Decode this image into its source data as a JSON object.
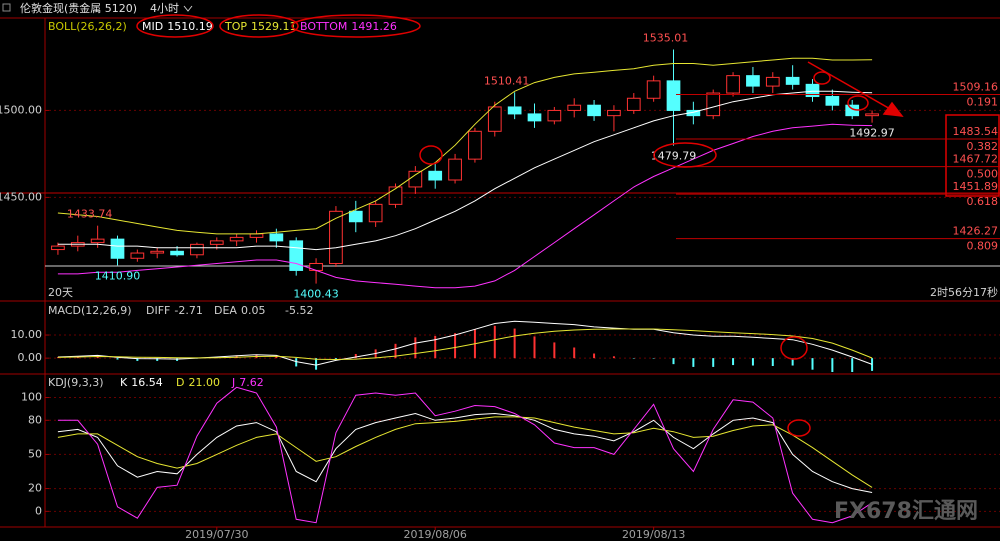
{
  "chart_data": [
    {
      "type": "candlestick",
      "title": "伦敦金现(贵金属 5120)",
      "period": "4小时",
      "open": [
        1420,
        1422,
        1424,
        1426,
        1415,
        1418,
        1419,
        1417,
        1423,
        1425,
        1427,
        1429,
        1425,
        1408,
        1412,
        1442,
        1436,
        1446,
        1456,
        1465,
        1460,
        1472,
        1488,
        1502,
        1498,
        1494,
        1500,
        1503,
        1497,
        1500,
        1507,
        1517,
        1500,
        1497,
        1510,
        1520,
        1514,
        1519,
        1515,
        1508,
        1503,
        1497
      ],
      "high": [
        1424,
        1428,
        1433.74,
        1428,
        1420,
        1421,
        1422,
        1424,
        1427,
        1429,
        1431,
        1432,
        1427,
        1415,
        1445,
        1448,
        1448,
        1458,
        1468,
        1470,
        1475,
        1490,
        1505,
        1510.41,
        1504,
        1502,
        1507,
        1506,
        1503,
        1510,
        1520,
        1535.01,
        1505,
        1512,
        1522,
        1525,
        1522,
        1526,
        1518,
        1512,
        1506,
        1500
      ],
      "low": [
        1417,
        1419,
        1421,
        1410.9,
        1413,
        1415,
        1416,
        1415,
        1420,
        1422,
        1424,
        1421,
        1405,
        1400.43,
        1410,
        1430,
        1433,
        1444,
        1452,
        1455,
        1458,
        1470,
        1485,
        1495,
        1490,
        1492,
        1496,
        1494,
        1488,
        1498,
        1505,
        1479.79,
        1492,
        1495,
        1508,
        1510,
        1510,
        1512,
        1505,
        1500,
        1495,
        1492.97
      ],
      "close": [
        1422,
        1424,
        1426,
        1415,
        1418,
        1419,
        1417,
        1423,
        1425,
        1427,
        1429,
        1425,
        1408,
        1412,
        1442,
        1436,
        1446,
        1456,
        1465,
        1460,
        1472,
        1488,
        1502,
        1498,
        1494,
        1500,
        1503,
        1497,
        1500,
        1507,
        1517,
        1500,
        1497,
        1510,
        1520,
        1514,
        1519,
        1515,
        1508,
        1503,
        1497,
        1498
      ],
      "up_color": "#ff3232",
      "down_color": "#54ffff",
      "ylim": [
        1391,
        1552
      ],
      "yticks": [
        {
          "value": 1450,
          "label": "1450.00"
        },
        {
          "value": 1500,
          "label": "1500.00"
        }
      ],
      "grid": true,
      "overlay": {
        "name": "BOLL(26,26,2)",
        "color": "#c8c800",
        "series": [
          {
            "name": "MID",
            "color": "#ffffff",
            "readout": 1510.19,
            "values": [
              1423,
              1423,
              1423,
              1422,
              1422,
              1421,
              1421,
              1421,
              1421,
              1421,
              1422,
              1422,
              1421,
              1420,
              1421,
              1423,
              1425,
              1428,
              1432,
              1437,
              1442,
              1448,
              1455,
              1461,
              1467,
              1472,
              1477,
              1482,
              1486,
              1490,
              1494,
              1497,
              1499,
              1502,
              1505,
              1507,
              1509,
              1510,
              1511,
              1511,
              1510.5,
              1510.19
            ]
          },
          {
            "name": "TOP",
            "color": "#e6e632",
            "readout": 1529.11,
            "values": [
              1441,
              1440,
              1439,
              1437,
              1435,
              1433,
              1431,
              1430,
              1429,
              1429,
              1429,
              1430,
              1431,
              1432,
              1438,
              1443,
              1448,
              1455,
              1463,
              1470,
              1480,
              1492,
              1503,
              1511,
              1516,
              1519,
              1521,
              1522,
              1523,
              1524,
              1526,
              1527,
              1527,
              1526,
              1527,
              1528,
              1529,
              1530,
              1530,
              1529,
              1529,
              1529.11
            ]
          },
          {
            "name": "BOTTOM",
            "color": "#ff32ff",
            "readout": 1491.26,
            "values": [
              1406,
              1406,
              1407,
              1407,
              1408,
              1409,
              1410,
              1411,
              1412,
              1413,
              1414,
              1414,
              1412,
              1408,
              1404,
              1402,
              1401,
              1400,
              1399,
              1398,
              1398,
              1399,
              1402,
              1408,
              1416,
              1424,
              1432,
              1440,
              1448,
              1456,
              1462,
              1467,
              1472,
              1477,
              1481,
              1485,
              1488,
              1490,
              1491,
              1492,
              1491.5,
              1491.26
            ]
          }
        ]
      },
      "annotations": [
        1535.01,
        1510.41,
        1433.74,
        {
          "value": 1410.9,
          "label": "1410.90"
        },
        1400.43,
        1479.79,
        1492.97
      ],
      "levels": [
        {
          "price": 1509.16,
          "ratio": 0.191
        },
        {
          "price": 1483.54,
          "ratio": 0.382
        },
        {
          "price": 1467.72,
          "ratio": {
            "value": 0.5,
            "label": "0.500"
          }
        },
        {
          "price": 1451.89,
          "ratio": 0.618
        },
        {
          "price": 1426.27,
          "ratio": 0.809
        }
      ],
      "notes": [
        "20天",
        "2时56分17秒"
      ]
    },
    {
      "type": "macd",
      "title": "MACD(12,26,9)",
      "series": [
        {
          "name": "DIFF",
          "color": "#ffffff",
          "readout": -2.71,
          "values": [
            0.5,
            0.8,
            1.2,
            0.3,
            -0.2,
            -0.3,
            -0.4,
            0,
            0.5,
            1,
            1.5,
            1.2,
            -1.5,
            -3,
            -1,
            0.5,
            2,
            4,
            6.5,
            8,
            10,
            12.5,
            15,
            16,
            15.5,
            15,
            14.5,
            13.5,
            13,
            12.5,
            12.5,
            11,
            10,
            9.5,
            9.5,
            9,
            8.5,
            8,
            6,
            3.5,
            0.5,
            -2.71
          ]
        },
        {
          "name": "DEA",
          "color": "#e6e632",
          "readout": 0.05,
          "values": [
            0.3,
            0.5,
            0.7,
            0.6,
            0.4,
            0.3,
            0.2,
            0.1,
            0.2,
            0.4,
            0.7,
            0.8,
            0.3,
            -0.5,
            -0.6,
            -0.4,
            0.1,
            0.9,
            2,
            3.2,
            4.6,
            6.2,
            8,
            9.6,
            10.8,
            11.6,
            12.2,
            12.5,
            12.6,
            12.6,
            12.6,
            12.3,
            11.9,
            11.4,
            11,
            10.6,
            10.2,
            9.6,
            8.5,
            6.5,
            3.5,
            0.05
          ]
        }
      ],
      "histogram": {
        "readout": -5.52,
        "up_color": "#ff3232",
        "down_color": "#54ffff",
        "values": [
          0.4,
          0.6,
          1,
          -0.6,
          -1.2,
          -1.2,
          -1.2,
          -0.2,
          0.6,
          1.2,
          1.6,
          0.8,
          -3.6,
          -5,
          -0.8,
          1.8,
          3.8,
          6.2,
          9,
          9.6,
          10.8,
          12.6,
          14,
          12.8,
          9.4,
          6.8,
          4.6,
          2,
          0.8,
          -0.2,
          -0.2,
          -2.6,
          -3.8,
          -3.8,
          -3,
          -3.2,
          -3.4,
          -3.2,
          -5,
          -6,
          -6,
          -5.52
        ]
      },
      "ylim": [
        -6,
        23
      ],
      "yticks": [
        {
          "value": 0,
          "label": "0.00"
        },
        {
          "value": 10,
          "label": "10.00"
        }
      ],
      "grid": true
    },
    {
      "type": "line",
      "title": "KDJ(9,3,3)",
      "categories": [
        null,
        null,
        null,
        null,
        null,
        null,
        null,
        null,
        "2019/07/30",
        null,
        null,
        null,
        null,
        null,
        null,
        null,
        null,
        null,
        null,
        "2019/08/06",
        null,
        null,
        null,
        null,
        null,
        null,
        null,
        null,
        null,
        null,
        "2019/08/13",
        null,
        null,
        null,
        null,
        null,
        null,
        null,
        null,
        null,
        null,
        null
      ],
      "series": [
        {
          "name": "K",
          "color": "#ffffff",
          "readout": 16.54,
          "values": [
            70,
            72,
            65,
            40,
            30,
            35,
            33,
            50,
            65,
            75,
            78,
            70,
            35,
            26,
            55,
            72,
            78,
            82,
            86,
            80,
            82,
            85,
            86,
            84,
            80,
            72,
            68,
            66,
            62,
            70,
            80,
            65,
            55,
            68,
            80,
            82,
            78,
            50,
            35,
            26,
            20,
            16.54
          ]
        },
        {
          "name": "D",
          "color": "#e6e632",
          "readout": {
            "value": 21,
            "label": "21.00"
          },
          "values": [
            65,
            68,
            68,
            58,
            48,
            42,
            38,
            42,
            50,
            58,
            65,
            68,
            56,
            44,
            48,
            57,
            65,
            72,
            77,
            78,
            79,
            81,
            83,
            83,
            82,
            78,
            74,
            71,
            68,
            69,
            73,
            70,
            65,
            66,
            71,
            75,
            76,
            67,
            56,
            44,
            32,
            21
          ]
        },
        {
          "name": "J",
          "color": "#ff32ff",
          "readout": 7.62,
          "values": [
            80,
            80,
            59,
            4,
            -6,
            21,
            23,
            66,
            95,
            109,
            104,
            74,
            -7,
            -10,
            69,
            102,
            104,
            102,
            104,
            84,
            88,
            93,
            92,
            86,
            76,
            60,
            56,
            56,
            50,
            72,
            94,
            55,
            35,
            72,
            98,
            96,
            82,
            16,
            -7,
            -10,
            -4,
            7.62
          ]
        }
      ],
      "ylim": [
        -12,
        111
      ],
      "yticks": [
        0,
        20,
        50,
        80,
        100
      ],
      "grid": true
    }
  ],
  "watermark": {
    "brand": "FX678",
    "name": "汇通网"
  }
}
